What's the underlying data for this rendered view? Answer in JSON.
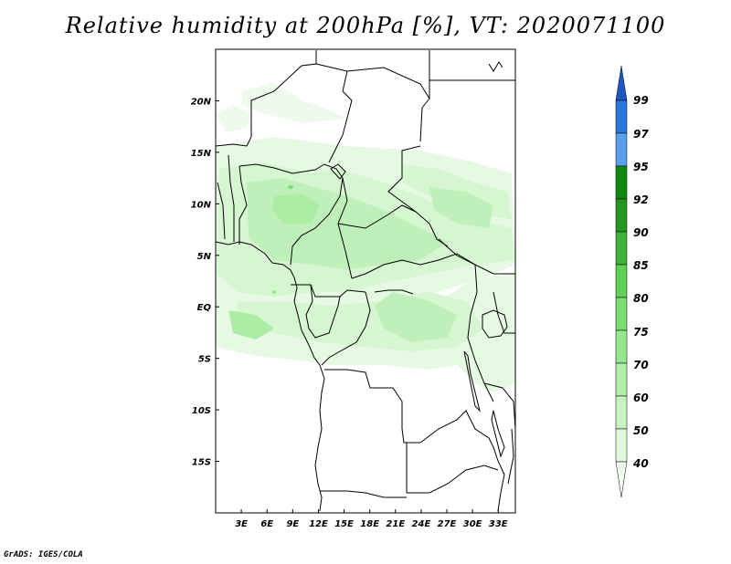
{
  "title": "Relative humidity at 200hPa [%], VT: 2020071100",
  "credit": "GrADS: IGES/COLA",
  "map": {
    "lat_labels": [
      "20N",
      "15N",
      "10N",
      "5N",
      "EQ",
      "5S",
      "10S",
      "15S"
    ],
    "lat_values": [
      20,
      15,
      10,
      5,
      0,
      -5,
      -10,
      -15
    ],
    "lon_labels": [
      "3E",
      "6E",
      "9E",
      "12E",
      "15E",
      "18E",
      "21E",
      "24E",
      "27E",
      "30E",
      "33E"
    ],
    "lon_values": [
      3,
      6,
      9,
      12,
      15,
      18,
      21,
      24,
      27,
      30,
      33
    ],
    "lon_range": [
      0,
      35
    ],
    "lat_range": [
      -20,
      25
    ]
  },
  "colorbar": {
    "levels": [
      "40",
      "50",
      "60",
      "70",
      "75",
      "80",
      "85",
      "90",
      "92",
      "95",
      "97",
      "99"
    ],
    "colors": {
      "c40": "#f0fcee",
      "c50": "#e0f8dc",
      "c60": "#c8f3c2",
      "c70": "#b0eeaa",
      "c75": "#96e78e",
      "c80": "#7bdd72",
      "c85": "#5fd256",
      "c90": "#3eb238",
      "c92": "#23971e",
      "c95": "#118a10",
      "c97": "#5aa0ec",
      "c99": "#2a76d6",
      "top": "#1f58c0"
    }
  }
}
